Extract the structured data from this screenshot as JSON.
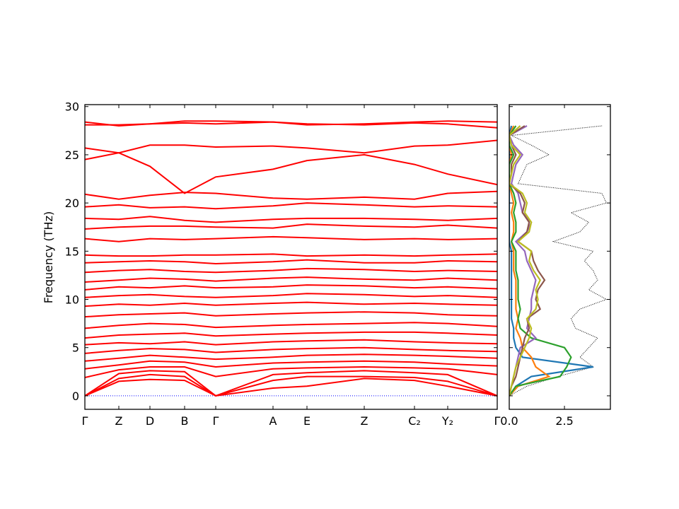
{
  "chart_data": [
    {
      "type": "bands",
      "ylabel": "Frequency (THz)",
      "x": [
        0,
        48,
        92,
        141,
        185,
        266,
        314,
        395,
        466,
        513,
        583
      ],
      "xlim": [
        0,
        583
      ],
      "xticks": [
        {
          "value": 0,
          "label": "Γ"
        },
        {
          "value": 48,
          "label": "Z"
        },
        {
          "value": 92,
          "label": "D"
        },
        {
          "value": 141,
          "label": "B"
        },
        {
          "value": 185,
          "label": "Γ"
        },
        {
          "value": 266,
          "label": "A"
        },
        {
          "value": 314,
          "label": "E"
        },
        {
          "value": 395,
          "label": "Z"
        },
        {
          "value": 466,
          "label": "C₂"
        },
        {
          "value": 513,
          "label": "Y₂"
        },
        {
          "value": 583,
          "label": "Γ"
        }
      ],
      "ylim": [
        -1.4,
        30.2
      ],
      "yticks": [
        0,
        5,
        10,
        15,
        20,
        25,
        30
      ],
      "zero_line_color": "#0000ff",
      "series": [
        {
          "color": "#ff0000",
          "values": [
            0,
            1.5,
            1.7,
            1.6,
            0,
            0.8,
            1.0,
            1.8,
            1.6,
            1.0,
            0
          ]
        },
        {
          "color": "#ff0000",
          "values": [
            0,
            1.8,
            2.2,
            2.0,
            0,
            1.6,
            2.0,
            2.0,
            1.9,
            1.5,
            0
          ]
        },
        {
          "color": "#ff0000",
          "values": [
            0,
            2.3,
            2.6,
            2.5,
            0,
            2.2,
            2.4,
            2.6,
            2.4,
            2.2,
            0
          ]
        },
        {
          "color": "#ff0000",
          "values": [
            1.9,
            2.7,
            3.0,
            3.0,
            2.0,
            2.8,
            2.9,
            3.0,
            2.9,
            2.8,
            2.2
          ]
        },
        {
          "color": "#ff0000",
          "values": [
            2.8,
            3.2,
            3.6,
            3.5,
            3.0,
            3.4,
            3.5,
            3.6,
            3.5,
            3.3,
            3.1
          ]
        },
        {
          "color": "#ff0000",
          "values": [
            3.6,
            3.9,
            4.2,
            4.0,
            3.8,
            4.0,
            4.2,
            4.3,
            4.2,
            4.1,
            3.9
          ]
        },
        {
          "color": "#ff0000",
          "values": [
            4.4,
            4.7,
            4.9,
            4.8,
            4.5,
            4.8,
            4.9,
            5.0,
            4.8,
            4.7,
            4.6
          ]
        },
        {
          "color": "#ff0000",
          "values": [
            5.3,
            5.5,
            5.4,
            5.6,
            5.3,
            5.6,
            5.7,
            5.8,
            5.6,
            5.5,
            5.4
          ]
        },
        {
          "color": "#ff0000",
          "values": [
            6.0,
            6.3,
            6.4,
            6.5,
            6.2,
            6.4,
            6.5,
            6.6,
            6.6,
            6.5,
            6.3
          ]
        },
        {
          "color": "#ff0000",
          "values": [
            7.0,
            7.3,
            7.5,
            7.4,
            7.1,
            7.3,
            7.4,
            7.5,
            7.6,
            7.5,
            7.2
          ]
        },
        {
          "color": "#ff0000",
          "values": [
            8.2,
            8.4,
            8.5,
            8.6,
            8.3,
            8.5,
            8.6,
            8.7,
            8.6,
            8.4,
            8.3
          ]
        },
        {
          "color": "#ff0000",
          "values": [
            9.3,
            9.5,
            9.4,
            9.6,
            9.4,
            9.6,
            9.7,
            9.5,
            9.6,
            9.5,
            9.4
          ]
        },
        {
          "color": "#ff0000",
          "values": [
            10.2,
            10.4,
            10.5,
            10.3,
            10.2,
            10.4,
            10.6,
            10.5,
            10.3,
            10.4,
            10.2
          ]
        },
        {
          "color": "#ff0000",
          "values": [
            11.0,
            11.3,
            11.2,
            11.4,
            11.2,
            11.3,
            11.5,
            11.4,
            11.2,
            11.3,
            11.1
          ]
        },
        {
          "color": "#ff0000",
          "values": [
            11.8,
            12.0,
            12.2,
            12.1,
            11.9,
            12.2,
            12.3,
            12.1,
            12.0,
            12.2,
            12.0
          ]
        },
        {
          "color": "#ff0000",
          "values": [
            12.8,
            13.0,
            13.1,
            12.9,
            12.8,
            13.0,
            13.2,
            13.1,
            12.9,
            13.0,
            12.9
          ]
        },
        {
          "color": "#ff0000",
          "values": [
            13.8,
            13.9,
            14.0,
            13.9,
            13.7,
            13.9,
            14.1,
            13.8,
            13.8,
            14.0,
            13.9
          ]
        },
        {
          "color": "#ff0000",
          "values": [
            14.6,
            14.5,
            14.5,
            14.6,
            14.6,
            14.7,
            14.5,
            14.6,
            14.5,
            14.6,
            14.7
          ]
        },
        {
          "color": "#ff0000",
          "values": [
            16.3,
            16.0,
            16.3,
            16.2,
            16.3,
            16.5,
            16.4,
            16.2,
            16.3,
            16.2,
            16.3
          ]
        },
        {
          "color": "#ff0000",
          "values": [
            17.3,
            17.5,
            17.6,
            17.6,
            17.5,
            17.4,
            17.8,
            17.6,
            17.5,
            17.7,
            17.4
          ]
        },
        {
          "color": "#ff0000",
          "values": [
            18.4,
            18.3,
            18.6,
            18.2,
            18.0,
            18.3,
            18.4,
            18.4,
            18.3,
            18.2,
            18.4
          ]
        },
        {
          "color": "#ff0000",
          "values": [
            19.6,
            19.8,
            19.5,
            19.6,
            19.4,
            19.7,
            20.0,
            19.8,
            19.6,
            19.7,
            19.6
          ]
        },
        {
          "color": "#ff0000",
          "values": [
            20.9,
            20.4,
            20.8,
            21.1,
            21.0,
            20.5,
            20.4,
            20.6,
            20.4,
            21.0,
            21.2
          ]
        },
        {
          "color": "#ff0000",
          "values": [
            24.5,
            25.2,
            23.8,
            21.0,
            22.7,
            23.5,
            24.4,
            25.0,
            24.0,
            23.0,
            21.9
          ]
        },
        {
          "color": "#ff0000",
          "values": [
            25.7,
            25.2,
            26.0,
            26.0,
            25.8,
            25.9,
            25.7,
            25.2,
            25.9,
            26.0,
            26.5
          ]
        },
        {
          "color": "#ff0000",
          "values": [
            28.1,
            28.1,
            28.2,
            28.5,
            28.5,
            28.4,
            28.2,
            28.1,
            28.3,
            28.2,
            27.8
          ]
        },
        {
          "color": "#ff0000",
          "values": [
            28.4,
            28.0,
            28.2,
            28.3,
            28.2,
            28.4,
            28.1,
            28.2,
            28.4,
            28.5,
            28.4
          ]
        }
      ]
    },
    {
      "type": "dos",
      "y": [
        0,
        1,
        2,
        3,
        4,
        5,
        6,
        7,
        8,
        9,
        10,
        11,
        12,
        13,
        14,
        15,
        16,
        17,
        18,
        19,
        20,
        21,
        22,
        23,
        24,
        25,
        26,
        27,
        28
      ],
      "xlim": [
        0,
        4.58
      ],
      "xticks": [
        {
          "value": 0,
          "label": "0.0"
        },
        {
          "value": 2.5,
          "label": "2.5"
        }
      ],
      "ylim": [
        -1.4,
        30.2
      ],
      "yticks": [
        0,
        5,
        10,
        15,
        20,
        25,
        30
      ],
      "series": [
        {
          "color": "#000000",
          "style": "dotted",
          "values": [
            0,
            0.8,
            2.2,
            3.8,
            3.2,
            3.6,
            4.0,
            3.0,
            2.8,
            3.2,
            4.4,
            3.6,
            4.0,
            3.8,
            3.4,
            3.8,
            2.0,
            3.2,
            3.6,
            2.8,
            4.4,
            4.2,
            0.4,
            0.6,
            0.8,
            1.8,
            1.0,
            0.1,
            4.2
          ]
        },
        {
          "color": "#1f77b4",
          "values": [
            0,
            0.3,
            1.0,
            3.8,
            0.6,
            0.3,
            0.2,
            0.2,
            0.1,
            0.1,
            0.1,
            0.1,
            0.1,
            0.1,
            0.1,
            0.1,
            0,
            0,
            0,
            0,
            0,
            0,
            0,
            0,
            0,
            0,
            0,
            0,
            0.1
          ]
        },
        {
          "color": "#ff7f0e",
          "values": [
            0,
            0.4,
            1.8,
            1.2,
            1.0,
            0.6,
            0.5,
            0.3,
            0.4,
            0.3,
            0.3,
            0.3,
            0.3,
            0.2,
            0.2,
            0.2,
            0.1,
            0.2,
            0.2,
            0.1,
            0.2,
            0.1,
            0,
            0,
            0,
            0.1,
            0,
            0,
            0.2
          ]
        },
        {
          "color": "#2ca02c",
          "values": [
            0,
            0.3,
            2.3,
            2.6,
            2.8,
            2.5,
            1.0,
            0.5,
            0.4,
            0.5,
            0.4,
            0.4,
            0.4,
            0.3,
            0.3,
            0.3,
            0.1,
            0.3,
            0.3,
            0.2,
            0.3,
            0.2,
            0,
            0,
            0,
            0.2,
            0,
            0,
            0.3
          ]
        },
        {
          "color": "#9467bd",
          "values": [
            0,
            0.1,
            0.2,
            0.3,
            0.4,
            0.5,
            1.2,
            0.8,
            0.9,
            1.0,
            1.0,
            1.1,
            1.2,
            1.0,
            0.8,
            0.7,
            0.3,
            0.8,
            1.0,
            0.6,
            0.5,
            0.4,
            0.1,
            0.2,
            0.3,
            0.6,
            0.2,
            0,
            0.8
          ]
        },
        {
          "color": "#8c564b",
          "values": [
            0,
            0.1,
            0.3,
            0.4,
            0.5,
            0.6,
            0.7,
            0.9,
            0.8,
            1.4,
            1.2,
            1.3,
            1.6,
            1.3,
            1.1,
            1.0,
            0.4,
            0.8,
            0.9,
            0.6,
            0.7,
            0.5,
            0,
            0.1,
            0.1,
            0.3,
            0.1,
            0,
            0.7
          ]
        },
        {
          "color": "#bcbd22",
          "values": [
            0,
            0.1,
            0.2,
            0.3,
            0.5,
            0.7,
            0.9,
            1.0,
            0.8,
            1.2,
            1.3,
            1.2,
            1.4,
            1.1,
            0.9,
            1.0,
            0.4,
            0.9,
            1.0,
            0.7,
            0.8,
            0.6,
            0,
            0.1,
            0.2,
            0.5,
            0.1,
            0,
            0.5
          ]
        }
      ]
    }
  ]
}
